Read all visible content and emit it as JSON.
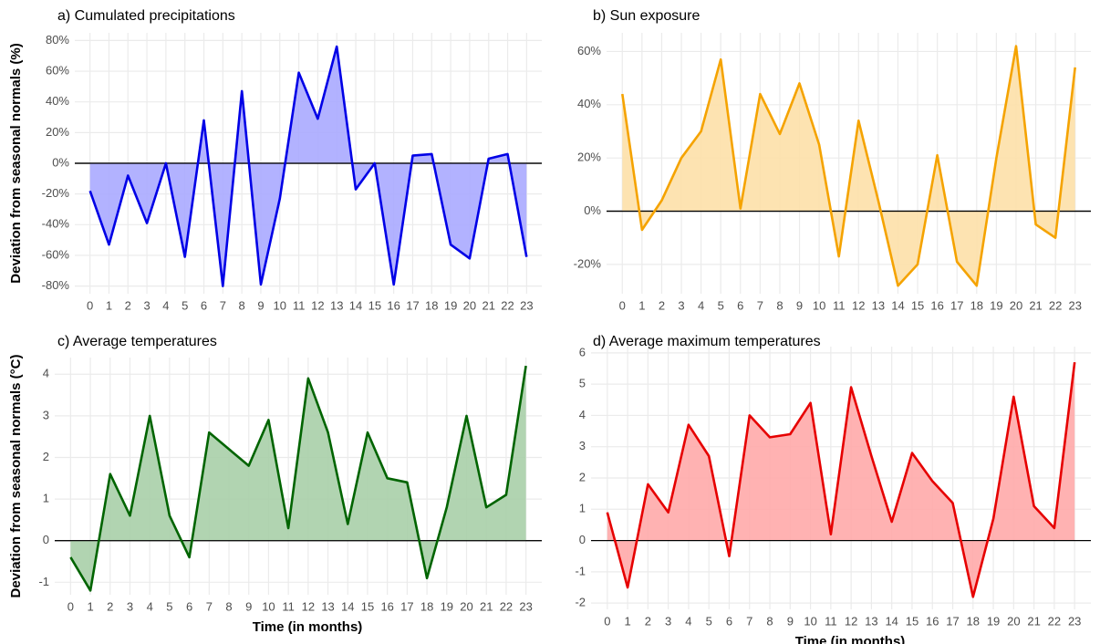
{
  "chart_data": [
    {
      "type": "area",
      "title": "a) Cumulated precipitations",
      "y_label": "Deviation from seasonal normals (%)",
      "x": [
        0,
        1,
        2,
        3,
        4,
        5,
        6,
        7,
        8,
        9,
        10,
        11,
        12,
        13,
        14,
        15,
        16,
        17,
        18,
        19,
        20,
        21,
        22,
        23
      ],
      "series": [
        {
          "name": "Cumulated precipitations",
          "color": "#0000e6",
          "fill": "#aaaaff",
          "values": [
            -18,
            -53,
            -8,
            -39,
            0,
            -61,
            28,
            -80,
            47,
            -79,
            -23,
            59,
            29,
            76,
            -17,
            0,
            -79,
            5,
            6,
            -53,
            -62,
            3,
            6,
            -61
          ]
        }
      ],
      "xlim": [
        -0.8,
        23.8
      ],
      "xticks": [
        0,
        1,
        2,
        3,
        4,
        5,
        6,
        7,
        8,
        9,
        10,
        11,
        12,
        13,
        14,
        15,
        16,
        17,
        18,
        19,
        20,
        21,
        22,
        23
      ],
      "ylim": [
        -85,
        85
      ],
      "yticks": [
        {
          "value": -80,
          "label": "-80%"
        },
        {
          "value": -60,
          "label": "-60%"
        },
        {
          "value": -40,
          "label": "-40%"
        },
        {
          "value": -20,
          "label": "-20%"
        },
        {
          "value": 0,
          "label": "0%"
        },
        {
          "value": 20,
          "label": "20%"
        },
        {
          "value": 40,
          "label": "40%"
        },
        {
          "value": 60,
          "label": "60%"
        },
        {
          "value": 80,
          "label": "80%"
        }
      ],
      "grid": true
    },
    {
      "type": "area",
      "title": "b) Sun exposure",
      "x": [
        0,
        1,
        2,
        3,
        4,
        5,
        6,
        7,
        8,
        9,
        10,
        11,
        12,
        13,
        14,
        15,
        16,
        17,
        18,
        19,
        20,
        21,
        22,
        23
      ],
      "series": [
        {
          "name": "Sun exposure",
          "color": "#f5a300",
          "fill": "#fde0a8",
          "values": [
            44,
            -7,
            4,
            20,
            30,
            57,
            1,
            44,
            29,
            48,
            25,
            -17,
            34,
            4,
            -28,
            -20,
            21,
            -19,
            -28,
            20,
            62,
            -5,
            -10,
            54
          ]
        }
      ],
      "xlim": [
        -0.8,
        23.8
      ],
      "xticks": [
        0,
        1,
        2,
        3,
        4,
        5,
        6,
        7,
        8,
        9,
        10,
        11,
        12,
        13,
        14,
        15,
        16,
        17,
        18,
        19,
        20,
        21,
        22,
        23
      ],
      "ylim": [
        -31,
        67
      ],
      "yticks": [
        {
          "value": -20,
          "label": "-20%"
        },
        {
          "value": 0,
          "label": "0%"
        },
        {
          "value": 20,
          "label": "20%"
        },
        {
          "value": 40,
          "label": "40%"
        },
        {
          "value": 60,
          "label": "60%"
        }
      ],
      "grid": true
    },
    {
      "type": "area",
      "title": "c) Average temperatures",
      "y_label": "Deviation from seasonal normals (°C)",
      "x_label": "Time (in months)",
      "x": [
        0,
        1,
        2,
        3,
        4,
        5,
        6,
        7,
        8,
        9,
        10,
        11,
        12,
        13,
        14,
        15,
        16,
        17,
        18,
        19,
        20,
        21,
        22,
        23
      ],
      "series": [
        {
          "name": "Average temperatures",
          "color": "#006400",
          "fill": "#a8cfa8",
          "values": [
            -0.4,
            -1.2,
            1.6,
            0.6,
            3.0,
            0.6,
            -0.4,
            2.6,
            2.2,
            1.8,
            2.9,
            0.3,
            3.9,
            2.6,
            0.4,
            2.6,
            1.5,
            1.4,
            -0.9,
            0.8,
            3.0,
            0.8,
            1.1,
            4.2
          ]
        }
      ],
      "xlim": [
        -0.8,
        23.8
      ],
      "xticks": [
        0,
        1,
        2,
        3,
        4,
        5,
        6,
        7,
        8,
        9,
        10,
        11,
        12,
        13,
        14,
        15,
        16,
        17,
        18,
        19,
        20,
        21,
        22,
        23
      ],
      "ylim": [
        -1.3,
        4.4
      ],
      "yticks": [
        -1,
        0,
        1,
        2,
        3,
        4
      ],
      "grid": true
    },
    {
      "type": "area",
      "title": "d) Average maximum temperatures",
      "x_label": "Time (in months)",
      "x": [
        0,
        1,
        2,
        3,
        4,
        5,
        6,
        7,
        8,
        9,
        10,
        11,
        12,
        13,
        14,
        15,
        16,
        17,
        18,
        19,
        20,
        21,
        22,
        23
      ],
      "series": [
        {
          "name": "Average maximum temperatures",
          "color": "#e60000",
          "fill": "#ffaaaa",
          "values": [
            0.9,
            -1.5,
            1.8,
            0.9,
            3.7,
            2.7,
            -0.5,
            4.0,
            3.3,
            3.4,
            4.4,
            0.2,
            4.9,
            2.7,
            0.6,
            2.8,
            1.9,
            1.2,
            -1.8,
            0.7,
            4.6,
            1.1,
            0.4,
            5.7
          ]
        }
      ],
      "xlim": [
        -0.8,
        23.8
      ],
      "xticks": [
        0,
        1,
        2,
        3,
        4,
        5,
        6,
        7,
        8,
        9,
        10,
        11,
        12,
        13,
        14,
        15,
        16,
        17,
        18,
        19,
        20,
        21,
        22,
        23
      ],
      "ylim": [
        -2.2,
        6.2
      ],
      "yticks": [
        -2,
        -1,
        0,
        1,
        2,
        3,
        4,
        5,
        6
      ],
      "grid": true
    }
  ]
}
